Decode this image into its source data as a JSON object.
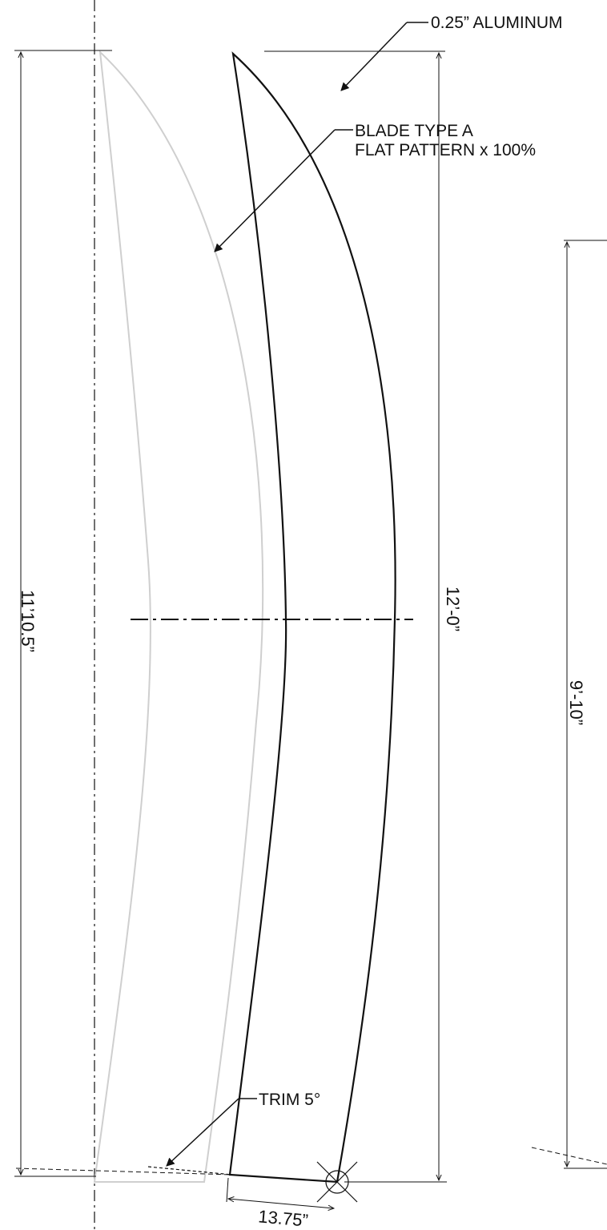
{
  "callouts": {
    "material": "0.25” ALUMINUM",
    "blade_line1": "BLADE TYPE A",
    "blade_line2": "FLAT PATTERN x 100%",
    "trim": "TRIM 5°"
  },
  "dimensions": {
    "overall_left": "11’10.5”",
    "blade_height": "12’-0”",
    "right_height": "9’-10”",
    "base_width": "13.75”"
  },
  "icons": {
    "pivot": "circle-crosshair-icon",
    "arrow": "arrowhead-icon"
  },
  "colors": {
    "line": "#111111",
    "ghost_outline": "#cfcfcf"
  }
}
